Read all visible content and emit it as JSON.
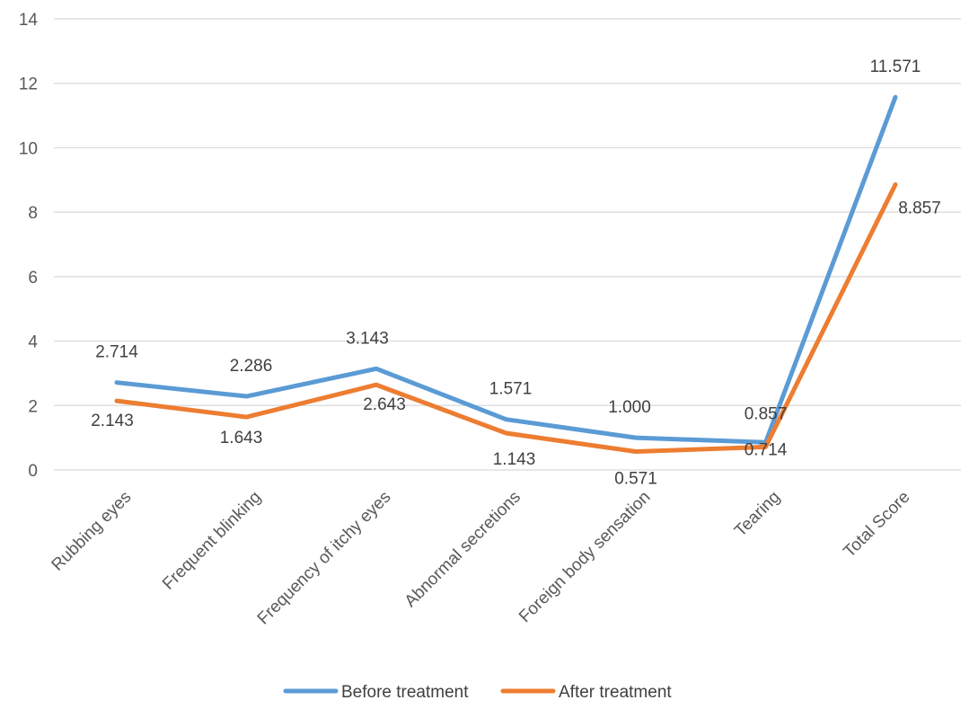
{
  "chart_data": {
    "type": "line",
    "title": "",
    "xlabel": "",
    "ylabel": "",
    "categories": [
      "Rubbing eyes",
      "Frequent blinking",
      "Frequency of itchy eyes",
      "Abnormal secretions",
      "Foreign body sensation",
      "Tearing",
      "Total Score"
    ],
    "series": [
      {
        "name": "Before treatment",
        "color": "#5B9BD5",
        "values": [
          2.714,
          2.286,
          3.143,
          1.571,
          1.0,
          0.857,
          11.571
        ],
        "labels": [
          "2.714",
          "2.286",
          "3.143",
          "1.571",
          "1.000",
          "0.857",
          "11.571"
        ]
      },
      {
        "name": "After treatment",
        "color": "#ED7D31",
        "values": [
          2.143,
          1.643,
          2.643,
          1.143,
          0.571,
          0.714,
          8.857
        ],
        "labels": [
          "2.143",
          "1.643",
          "2.643",
          "1.143",
          "0.571",
          "0.714",
          "8.857"
        ]
      }
    ],
    "ylim": [
      0,
      14
    ],
    "yticks": [
      0,
      2,
      4,
      6,
      8,
      10,
      12,
      14
    ],
    "grid": true,
    "legend": "bottom"
  }
}
